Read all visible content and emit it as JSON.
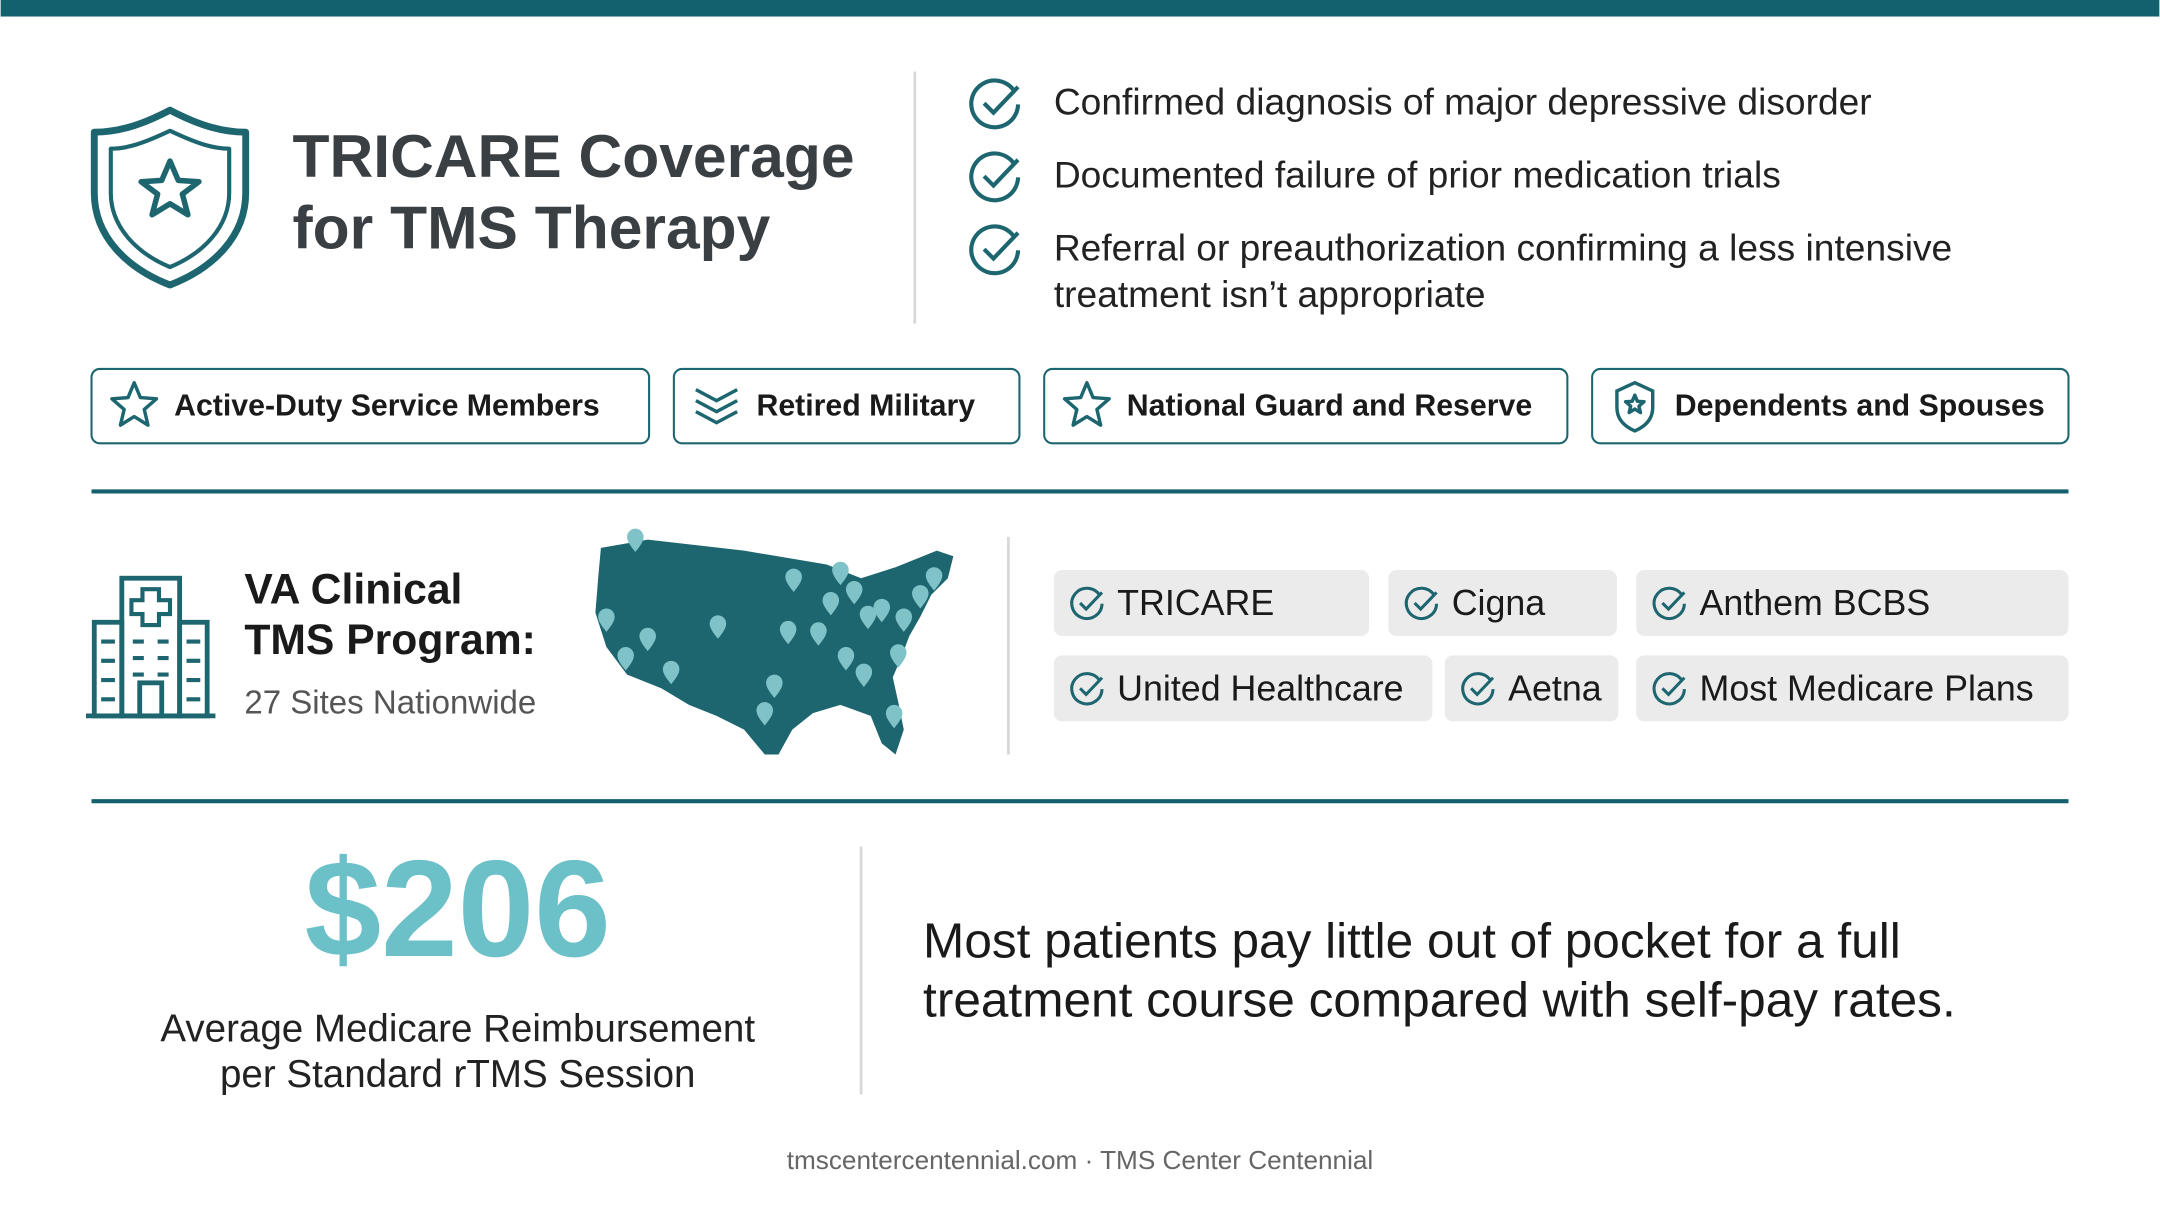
{
  "header": {
    "title_lines": [
      "TRICARE Coverage",
      "for TMS Therapy"
    ]
  },
  "criteria": [
    [
      "Confirmed diagnosis of major depressive disorder"
    ],
    [
      "Documented failure of prior medication trials"
    ],
    [
      "Referral or preauthorization confirming a less intensive",
      "treatment isn’t appropriate"
    ]
  ],
  "eligible_groups": [
    "Active-Duty Service Members",
    "Retired Military",
    "National Guard and Reserve",
    "Dependents and Spouses"
  ],
  "va_program": {
    "title_lines": [
      "VA Clinical",
      "TMS Program:"
    ],
    "subtitle": "27 Sites Nationwide"
  },
  "insurers": [
    "TRICARE",
    "Cigna",
    "Anthem BCBS",
    "United Healthcare",
    "Aetna",
    "Most Medicare Plans"
  ],
  "stat": {
    "value": "$206",
    "caption_lines": [
      "Average Medicare Reimbursement",
      "per Standard rTMS Session"
    ]
  },
  "note_lines": [
    "Most patients pay little out of pocket for a full",
    "treatment course compared with self-pay rates."
  ],
  "footer": "tmscentercentennial.com · TMS Center Centennial"
}
